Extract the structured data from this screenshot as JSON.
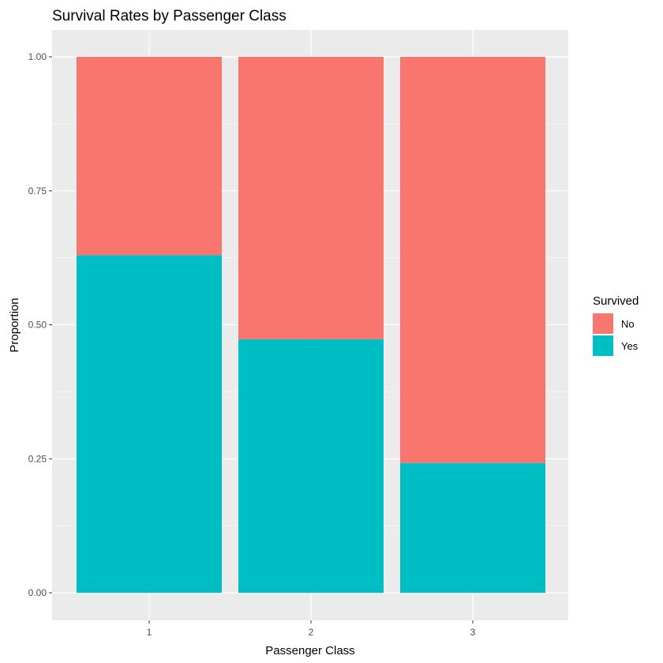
{
  "chart_data": {
    "type": "bar",
    "stacked": true,
    "title": "Survival Rates by Passenger Class",
    "xlabel": "Passenger Class",
    "ylabel": "Proportion",
    "categories": [
      "1",
      "2",
      "3"
    ],
    "ylim": [
      0,
      1
    ],
    "yticks": [
      0,
      0.25,
      0.5,
      0.75,
      1
    ],
    "ytick_labels": [
      "0.00",
      "0.25",
      "0.50",
      "0.75",
      "1.00"
    ],
    "grid": true,
    "legend": {
      "title": "Survived",
      "position": "right"
    },
    "series": [
      {
        "name": "Yes",
        "values": [
          0.63,
          0.473,
          0.242
        ],
        "color": "#00BFC4"
      },
      {
        "name": "No",
        "values": [
          0.37,
          0.527,
          0.758
        ],
        "color": "#F8766D"
      }
    ],
    "legend_order": [
      "No",
      "Yes"
    ],
    "panel_background": "#EBEBEB",
    "grid_color": "#FFFFFF"
  }
}
